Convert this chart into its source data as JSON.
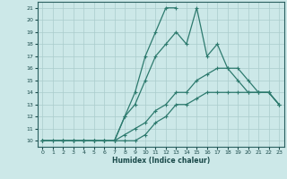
{
  "xlabel": "Humidex (Indice chaleur)",
  "bg_color": "#cce8e8",
  "grid_color": "#aacccc",
  "line_color": "#2d7a6e",
  "xlim": [
    -0.5,
    23.5
  ],
  "ylim": [
    9.5,
    21.5
  ],
  "xticks": [
    0,
    1,
    2,
    3,
    4,
    5,
    6,
    7,
    8,
    9,
    10,
    11,
    12,
    13,
    14,
    15,
    16,
    17,
    18,
    19,
    20,
    21,
    22,
    23
  ],
  "yticks": [
    10,
    11,
    12,
    13,
    14,
    15,
    16,
    17,
    18,
    19,
    20,
    21
  ],
  "line1_x": [
    0,
    1,
    2,
    3,
    4,
    5,
    6,
    7,
    8,
    9,
    10,
    11,
    12,
    13,
    14,
    15,
    16,
    17,
    18,
    19,
    20,
    21,
    22,
    23
  ],
  "line1_y": [
    10,
    10,
    10,
    10,
    10,
    10,
    10,
    10,
    10,
    10,
    10.5,
    11.5,
    12,
    13,
    13,
    13.5,
    14,
    14,
    14,
    14,
    14,
    14,
    14,
    13
  ],
  "line2_x": [
    0,
    1,
    2,
    3,
    4,
    5,
    6,
    7,
    8,
    9,
    10,
    11,
    12,
    13,
    14,
    15,
    16,
    17,
    18,
    19,
    20,
    21,
    22,
    23
  ],
  "line2_y": [
    10,
    10,
    10,
    10,
    10,
    10,
    10,
    10,
    10.5,
    11,
    11.5,
    12.5,
    13,
    14,
    14,
    15,
    15.5,
    16,
    16,
    16,
    15,
    14,
    14,
    13
  ],
  "line3_x": [
    0,
    2,
    3,
    4,
    5,
    6,
    7,
    8,
    9,
    10,
    11,
    12,
    13,
    14,
    15,
    16,
    17,
    18,
    19,
    20,
    21,
    22,
    23
  ],
  "line3_y": [
    10,
    10,
    10,
    10,
    10,
    10,
    10,
    12,
    13,
    15,
    17,
    18,
    19,
    18,
    21,
    17,
    18,
    16,
    15,
    14,
    14,
    14,
    13
  ],
  "line4_x": [
    0,
    2,
    3,
    4,
    5,
    6,
    7,
    8,
    9,
    10,
    11,
    12,
    13
  ],
  "line4_y": [
    10,
    10,
    10,
    10,
    10,
    10,
    10,
    12,
    14,
    17,
    19,
    21,
    21
  ]
}
